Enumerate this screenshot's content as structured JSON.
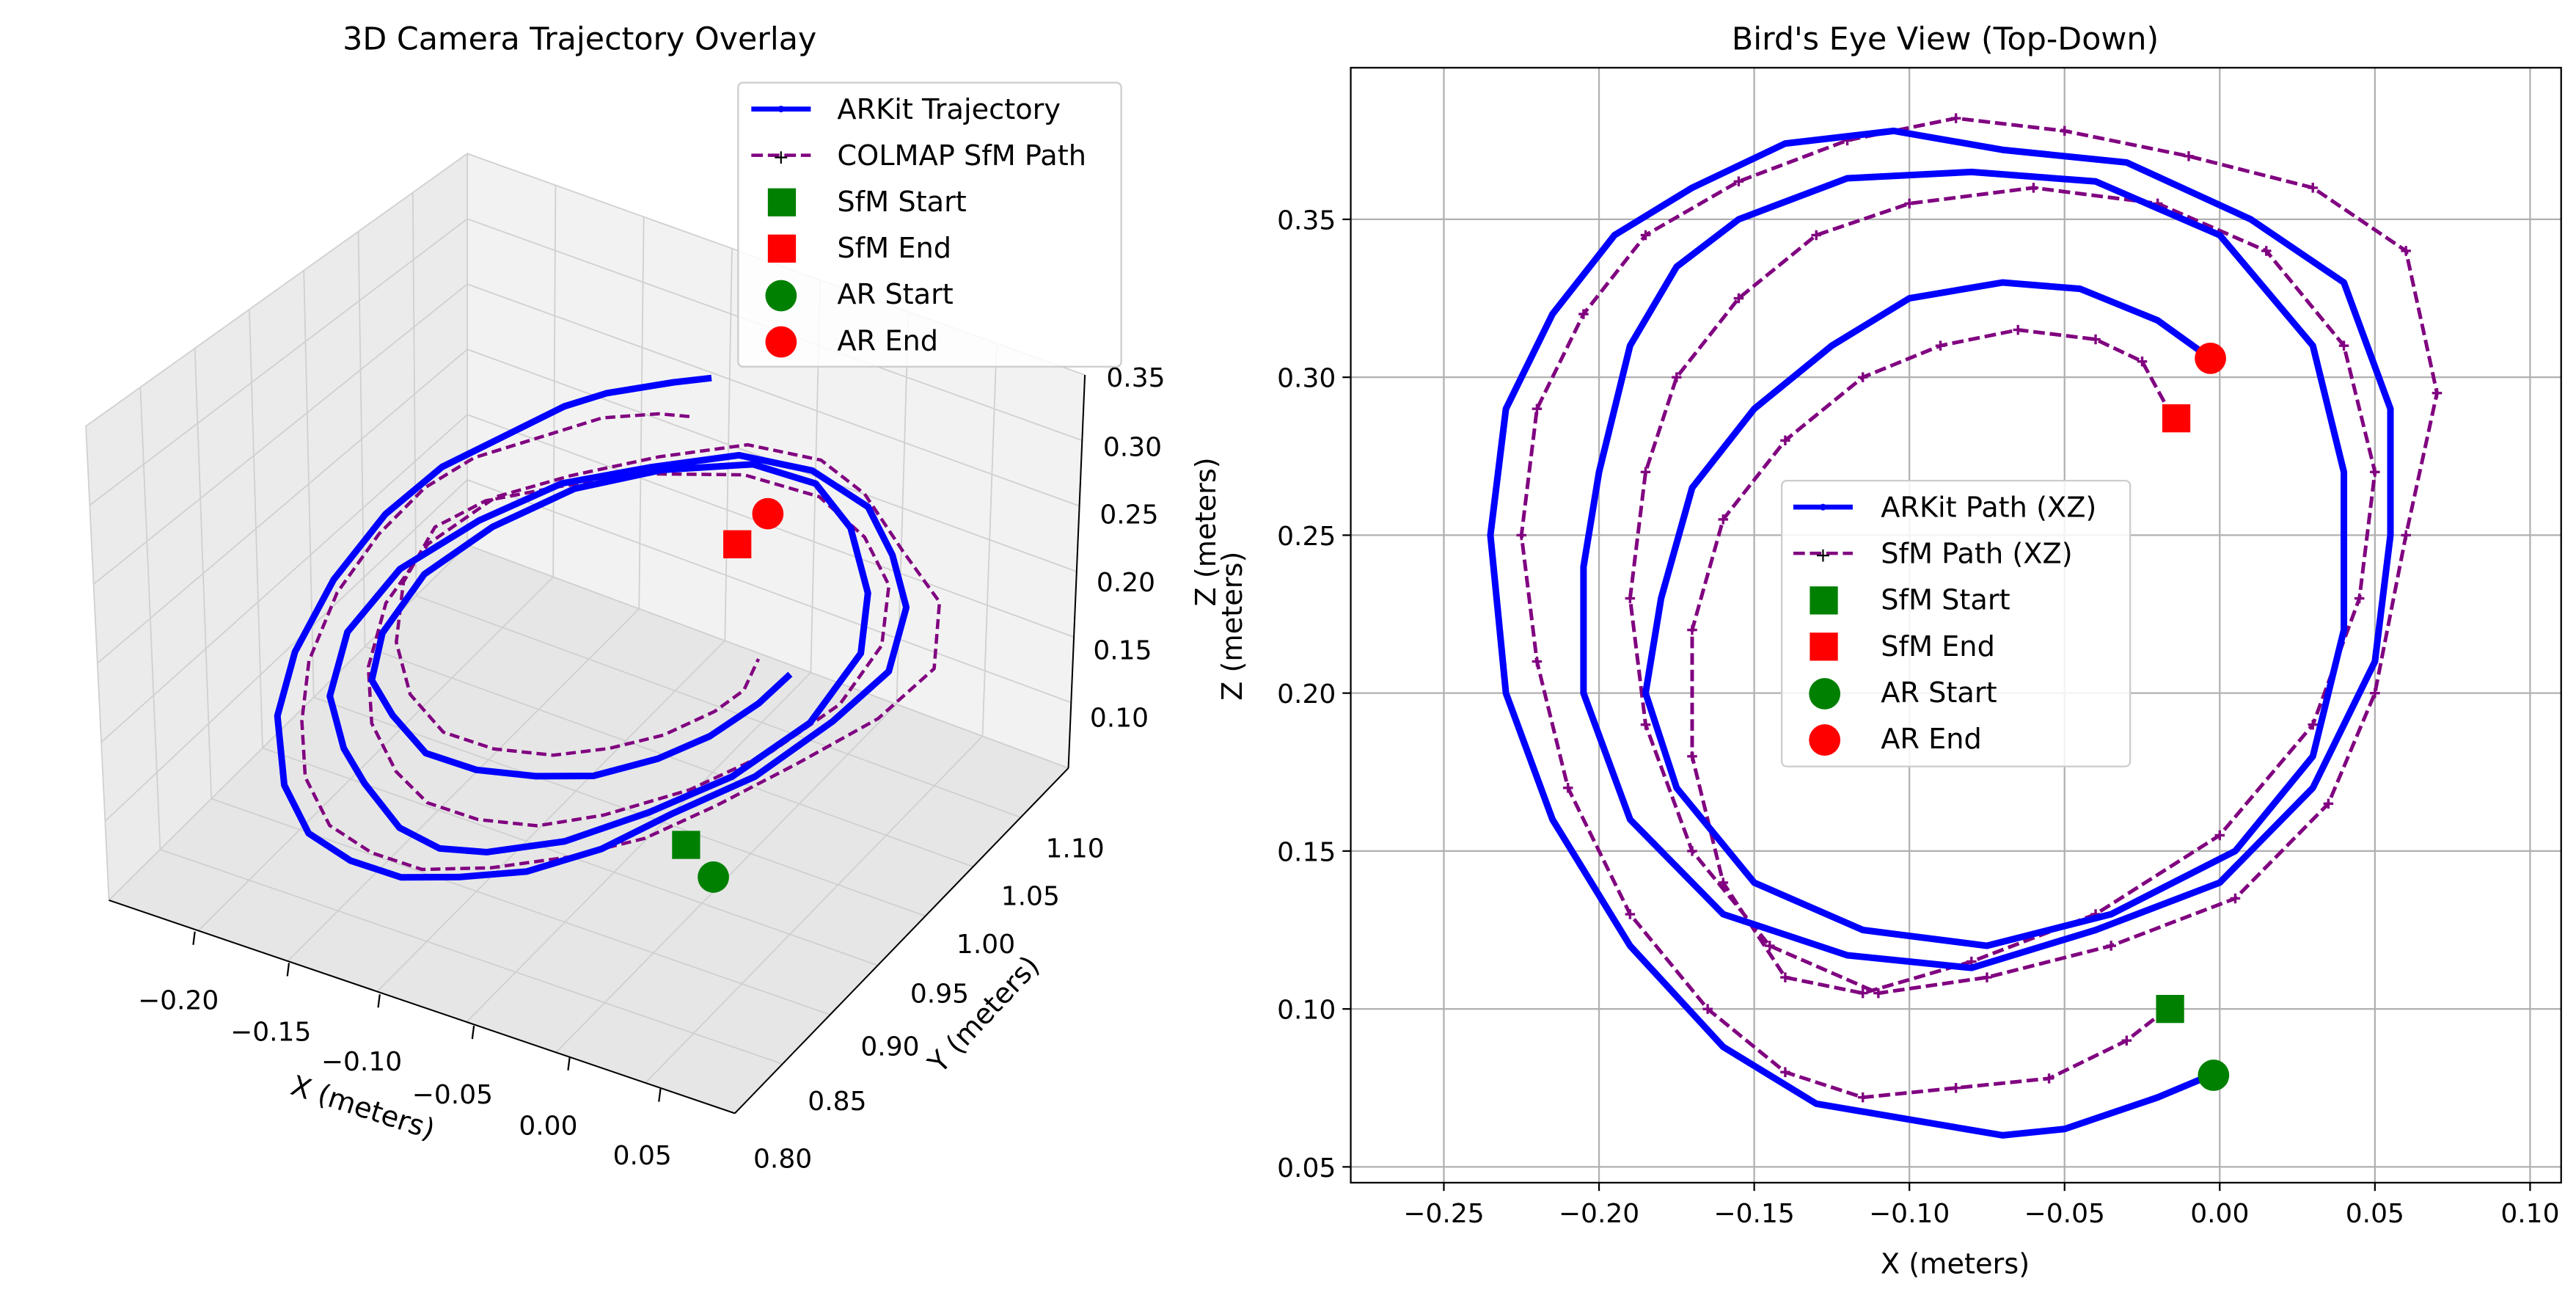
{
  "chart_data": [
    {
      "type": "line",
      "projection": "3d",
      "title": "3D Camera Trajectory Overlay",
      "xlabel": "X (meters)",
      "ylabel": "Y (meters)",
      "zlabel": "Z (meters)",
      "xticks": [
        "−0.20",
        "−0.15",
        "−0.10",
        "−0.05",
        "0.00",
        "0.05"
      ],
      "yticks": [
        "0.80",
        "0.85",
        "0.90",
        "0.95",
        "1.00",
        "1.05",
        "1.10"
      ],
      "zticks": [
        "0.10",
        "0.15",
        "0.20",
        "0.25",
        "0.30",
        "0.35"
      ],
      "xlim": [
        -0.235,
        0.075
      ],
      "ylim": [
        0.8,
        1.12
      ],
      "zlim": [
        0.07,
        0.36
      ],
      "grid": true,
      "legend_position": "top-right",
      "legend": [
        "ARKit Trajectory",
        "COLMAP SfM Path",
        "SfM Start",
        "SfM End",
        "AR Start",
        "AR End"
      ],
      "series": [
        {
          "name": "ARKit Trajectory",
          "color": "#0000ff",
          "style": "solid",
          "marker": "dot"
        },
        {
          "name": "COLMAP SfM Path",
          "color": "#800080",
          "style": "dashed",
          "marker": "plus"
        }
      ],
      "markers": [
        {
          "name": "SfM Start",
          "shape": "square",
          "color": "#008000",
          "x": -0.015,
          "y": 1.06,
          "z": 0.1
        },
        {
          "name": "SfM End",
          "shape": "square",
          "color": "#ff0000",
          "x": -0.015,
          "y": 1.06,
          "z": 0.287
        },
        {
          "name": "AR Start",
          "shape": "circle",
          "color": "#008000",
          "x": -0.003,
          "y": 1.06,
          "z": 0.079
        },
        {
          "name": "AR End",
          "shape": "circle",
          "color": "#ff0000",
          "x": -0.003,
          "y": 1.06,
          "z": 0.306
        }
      ]
    },
    {
      "type": "line",
      "title": "Bird's Eye View (Top-Down)",
      "xlabel": "X (meters)",
      "ylabel": "Z (meters)",
      "xlim": [
        -0.28,
        0.11
      ],
      "ylim": [
        0.045,
        0.398
      ],
      "xticks": [
        -0.25,
        -0.2,
        -0.15,
        -0.1,
        -0.05,
        0.0,
        0.05,
        0.1
      ],
      "yticks": [
        0.05,
        0.1,
        0.15,
        0.2,
        0.25,
        0.3,
        0.35
      ],
      "xtick_labels": [
        "−0.25",
        "−0.20",
        "−0.15",
        "−0.10",
        "−0.05",
        "0.00",
        "0.05",
        "0.10"
      ],
      "ytick_labels": [
        "0.05",
        "0.10",
        "0.15",
        "0.20",
        "0.25",
        "0.30",
        "0.35"
      ],
      "grid": true,
      "legend_position": "center",
      "legend": [
        "ARKit Path (XZ)",
        "SfM Path (XZ)",
        "SfM Start",
        "SfM End",
        "AR Start",
        "AR End"
      ],
      "series": [
        {
          "name": "ARKit Path (XZ)",
          "color": "#0000ff",
          "style": "solid",
          "marker": "dot",
          "x": [
            -0.003,
            -0.02,
            -0.05,
            -0.07,
            -0.1,
            -0.13,
            -0.16,
            -0.19,
            -0.215,
            -0.23,
            -0.235,
            -0.23,
            -0.215,
            -0.195,
            -0.17,
            -0.14,
            -0.105,
            -0.07,
            -0.03,
            0.01,
            0.04,
            0.055,
            0.055,
            0.05,
            0.03,
            0.0,
            -0.04,
            -0.08,
            -0.12,
            -0.16,
            -0.19,
            -0.205,
            -0.205,
            -0.2,
            -0.19,
            -0.175,
            -0.155,
            -0.12,
            -0.08,
            -0.04,
            0.0,
            0.03,
            0.04,
            0.04,
            0.03,
            0.005,
            -0.035,
            -0.075,
            -0.115,
            -0.15,
            -0.175,
            -0.185,
            -0.18,
            -0.17,
            -0.15,
            -0.125,
            -0.1,
            -0.07,
            -0.045,
            -0.02,
            -0.003
          ],
          "y": [
            0.079,
            0.072,
            0.062,
            0.06,
            0.065,
            0.07,
            0.088,
            0.12,
            0.16,
            0.2,
            0.25,
            0.29,
            0.32,
            0.345,
            0.36,
            0.374,
            0.378,
            0.372,
            0.368,
            0.35,
            0.33,
            0.29,
            0.25,
            0.21,
            0.17,
            0.14,
            0.125,
            0.113,
            0.117,
            0.13,
            0.16,
            0.2,
            0.24,
            0.27,
            0.31,
            0.335,
            0.35,
            0.363,
            0.365,
            0.362,
            0.345,
            0.31,
            0.27,
            0.22,
            0.18,
            0.15,
            0.13,
            0.12,
            0.125,
            0.14,
            0.17,
            0.2,
            0.23,
            0.265,
            0.29,
            0.31,
            0.325,
            0.33,
            0.328,
            0.318,
            0.306
          ]
        },
        {
          "name": "SfM Path (XZ)",
          "color": "#800080",
          "style": "dashed",
          "marker": "plus",
          "x": [
            -0.017,
            -0.03,
            -0.055,
            -0.085,
            -0.115,
            -0.14,
            -0.165,
            -0.19,
            -0.21,
            -0.22,
            -0.225,
            -0.22,
            -0.205,
            -0.185,
            -0.155,
            -0.12,
            -0.085,
            -0.05,
            -0.01,
            0.03,
            0.06,
            0.07,
            0.06,
            0.05,
            0.035,
            0.005,
            -0.035,
            -0.075,
            -0.11,
            -0.145,
            -0.17,
            -0.185,
            -0.19,
            -0.185,
            -0.175,
            -0.155,
            -0.13,
            -0.1,
            -0.06,
            -0.02,
            0.015,
            0.04,
            0.05,
            0.045,
            0.03,
            0.0,
            -0.04,
            -0.08,
            -0.115,
            -0.14,
            -0.16,
            -0.17,
            -0.17,
            -0.16,
            -0.14,
            -0.115,
            -0.09,
            -0.065,
            -0.04,
            -0.025,
            -0.015
          ],
          "y": [
            0.1,
            0.09,
            0.078,
            0.075,
            0.072,
            0.08,
            0.1,
            0.13,
            0.17,
            0.21,
            0.25,
            0.29,
            0.32,
            0.345,
            0.362,
            0.375,
            0.382,
            0.378,
            0.37,
            0.36,
            0.34,
            0.295,
            0.25,
            0.2,
            0.165,
            0.135,
            0.12,
            0.11,
            0.105,
            0.12,
            0.15,
            0.19,
            0.23,
            0.27,
            0.3,
            0.325,
            0.345,
            0.355,
            0.36,
            0.355,
            0.34,
            0.31,
            0.27,
            0.23,
            0.19,
            0.155,
            0.13,
            0.115,
            0.105,
            0.11,
            0.14,
            0.18,
            0.22,
            0.255,
            0.28,
            0.3,
            0.31,
            0.315,
            0.312,
            0.305,
            0.287
          ]
        }
      ],
      "markers": [
        {
          "name": "SfM Start",
          "shape": "square",
          "color": "#008000",
          "x": -0.016,
          "y": 0.1
        },
        {
          "name": "SfM End",
          "shape": "square",
          "color": "#ff0000",
          "x": -0.014,
          "y": 0.287
        },
        {
          "name": "AR Start",
          "shape": "circle",
          "color": "#008000",
          "x": -0.002,
          "y": 0.079
        },
        {
          "name": "AR End",
          "shape": "circle",
          "color": "#ff0000",
          "x": -0.003,
          "y": 0.306
        }
      ]
    }
  ]
}
